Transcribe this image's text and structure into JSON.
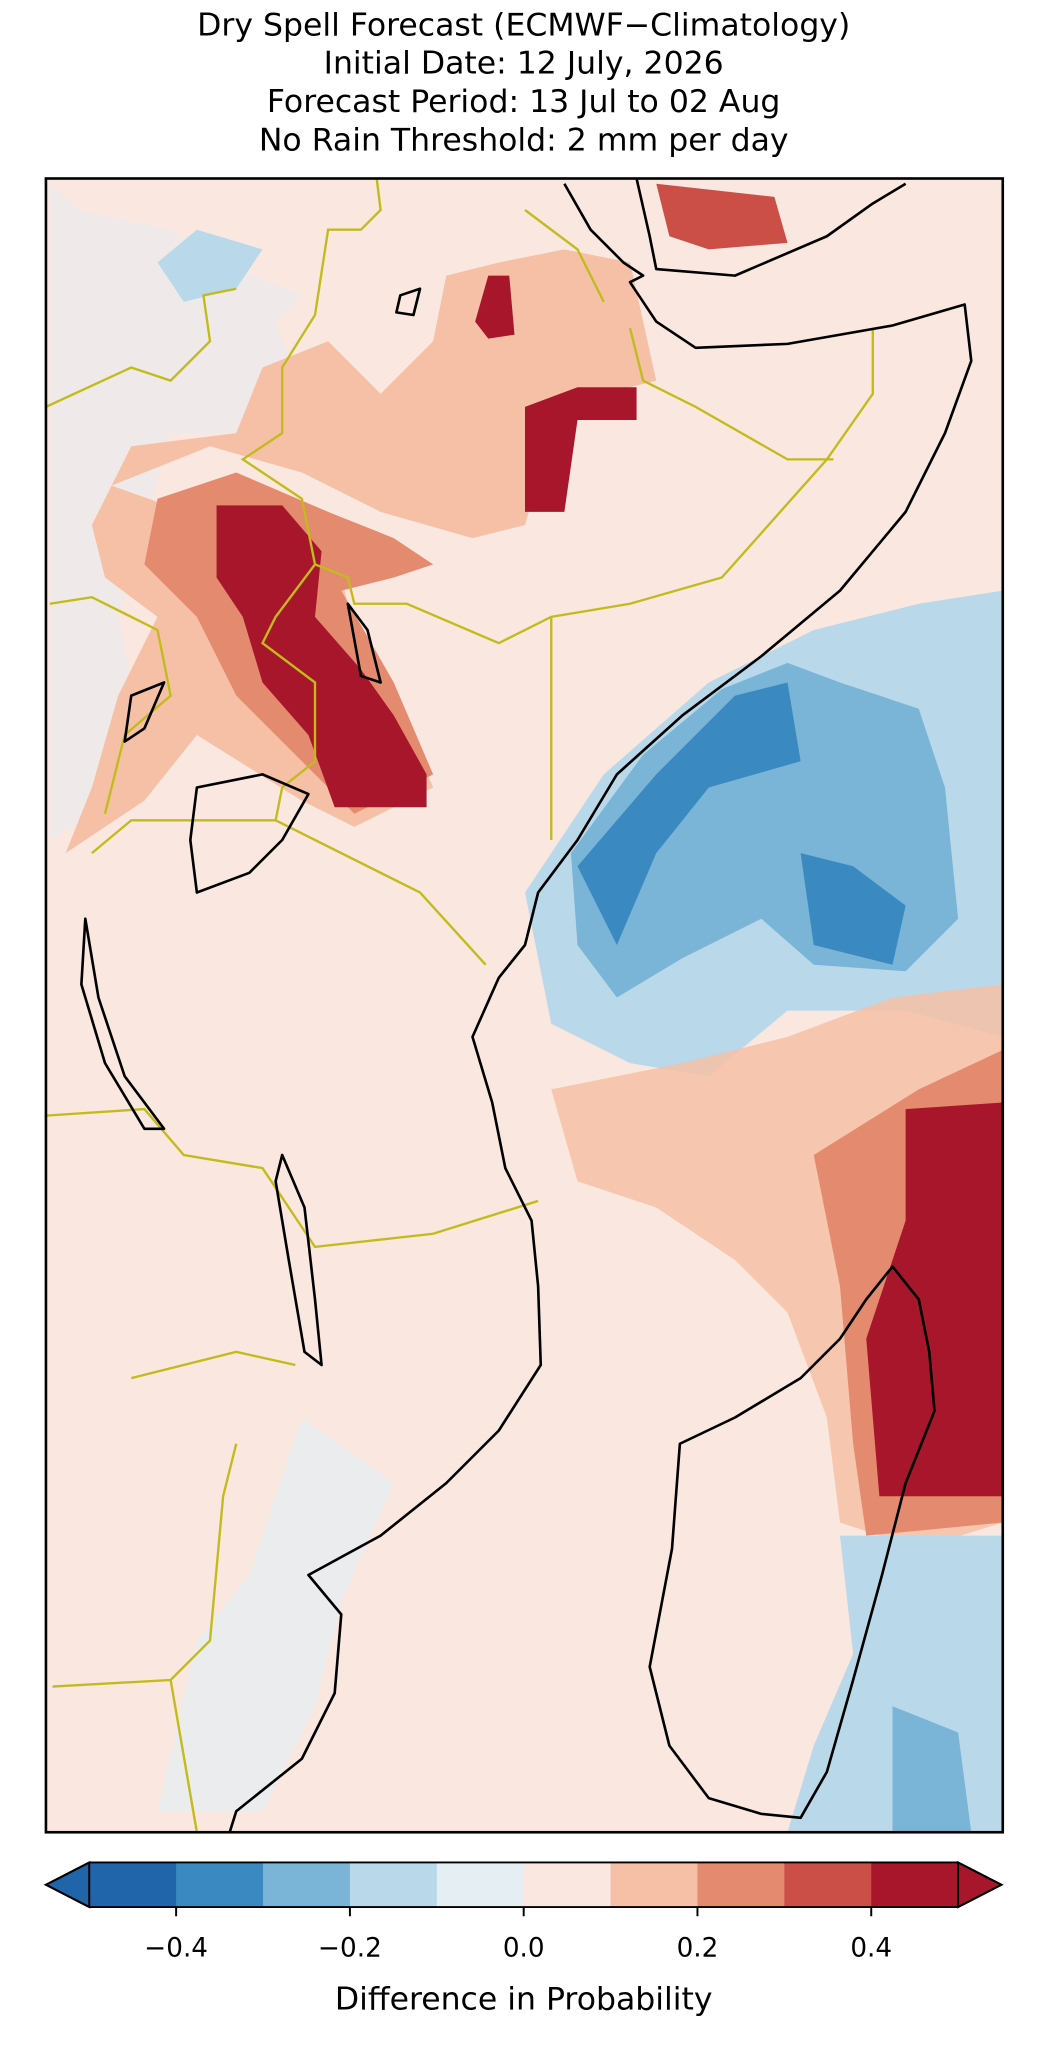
{
  "title_lines": [
    "Dry Spell Forecast (ECMWF−Climatology)",
    "Initial Date: 12 July, 2026",
    "Forecast Period: 13 Jul to 02 Aug",
    "No Rain Threshold: 2 mm per day"
  ],
  "colorbar": {
    "label": "Difference in Probability",
    "boundaries": [
      -0.5,
      -0.4,
      -0.3,
      -0.2,
      -0.1,
      0,
      0.1,
      0.2,
      0.3,
      0.4,
      0.5
    ],
    "colors": [
      "#2064aa",
      "#3a89c1",
      "#7ab4d7",
      "#b9d9ea",
      "#e4eef3",
      "#fae7df",
      "#f6c0a6",
      "#e48a6e",
      "#cc4f47",
      "#a8162b"
    ],
    "extend": "both",
    "ticks": [
      {
        "value": -0.4,
        "label": "−0.4"
      },
      {
        "value": -0.2,
        "label": "−0.2"
      },
      {
        "value": 0,
        "label": "0.0"
      },
      0.2,
      0.4
    ]
  }
}
